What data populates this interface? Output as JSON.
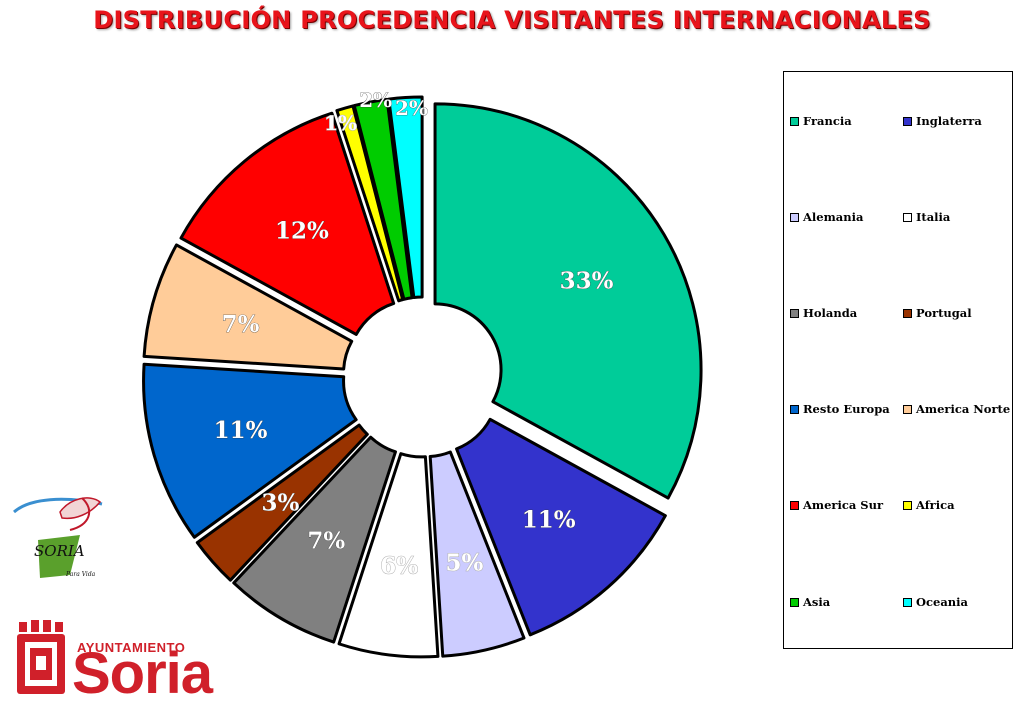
{
  "title": "DISTRIBUCIÓN PROCEDENCIA VISITANTES INTERNACIONALES",
  "chart_data": {
    "type": "pie",
    "variant": "doughnut, exploded",
    "title": "DISTRIBUCIÓN PROCEDENCIA VISITANTES INTERNACIONALES",
    "legend_position": "right",
    "slices": [
      {
        "name": "Francia",
        "value": 33,
        "label": "33%",
        "color": "#00cc99"
      },
      {
        "name": "Inglaterra",
        "value": 11,
        "label": "11%",
        "color": "#3333cc"
      },
      {
        "name": "Alemania",
        "value": 5,
        "label": "5%",
        "color": "#ccccff"
      },
      {
        "name": "Italia",
        "value": 6,
        "label": "6%",
        "color": "#ffffff"
      },
      {
        "name": "Holanda",
        "value": 7,
        "label": "7%",
        "color": "#808080"
      },
      {
        "name": "Portugal",
        "value": 3,
        "label": "3%",
        "color": "#993300"
      },
      {
        "name": "Resto Europa",
        "value": 11,
        "label": "11%",
        "color": "#0066cc"
      },
      {
        "name": "America Norte",
        "value": 7,
        "label": "7%",
        "color": "#ffcc99"
      },
      {
        "name": "America Sur",
        "value": 12,
        "label": "12%",
        "color": "#ff0000"
      },
      {
        "name": "Africa",
        "value": 1,
        "label": "1%",
        "color": "#ffff00"
      },
      {
        "name": "Asia",
        "value": 2,
        "label": "2%",
        "color": "#00cc00"
      },
      {
        "name": "Oceania",
        "value": 2,
        "label": "2%",
        "color": "#00ffff"
      }
    ]
  },
  "logos": {
    "soria_logo_text": "SORIA",
    "soria_logo_tagline": "Para Vida",
    "ayuntamiento_small": "AYUNTAMIENTO",
    "ayuntamiento_big": "Soria"
  }
}
